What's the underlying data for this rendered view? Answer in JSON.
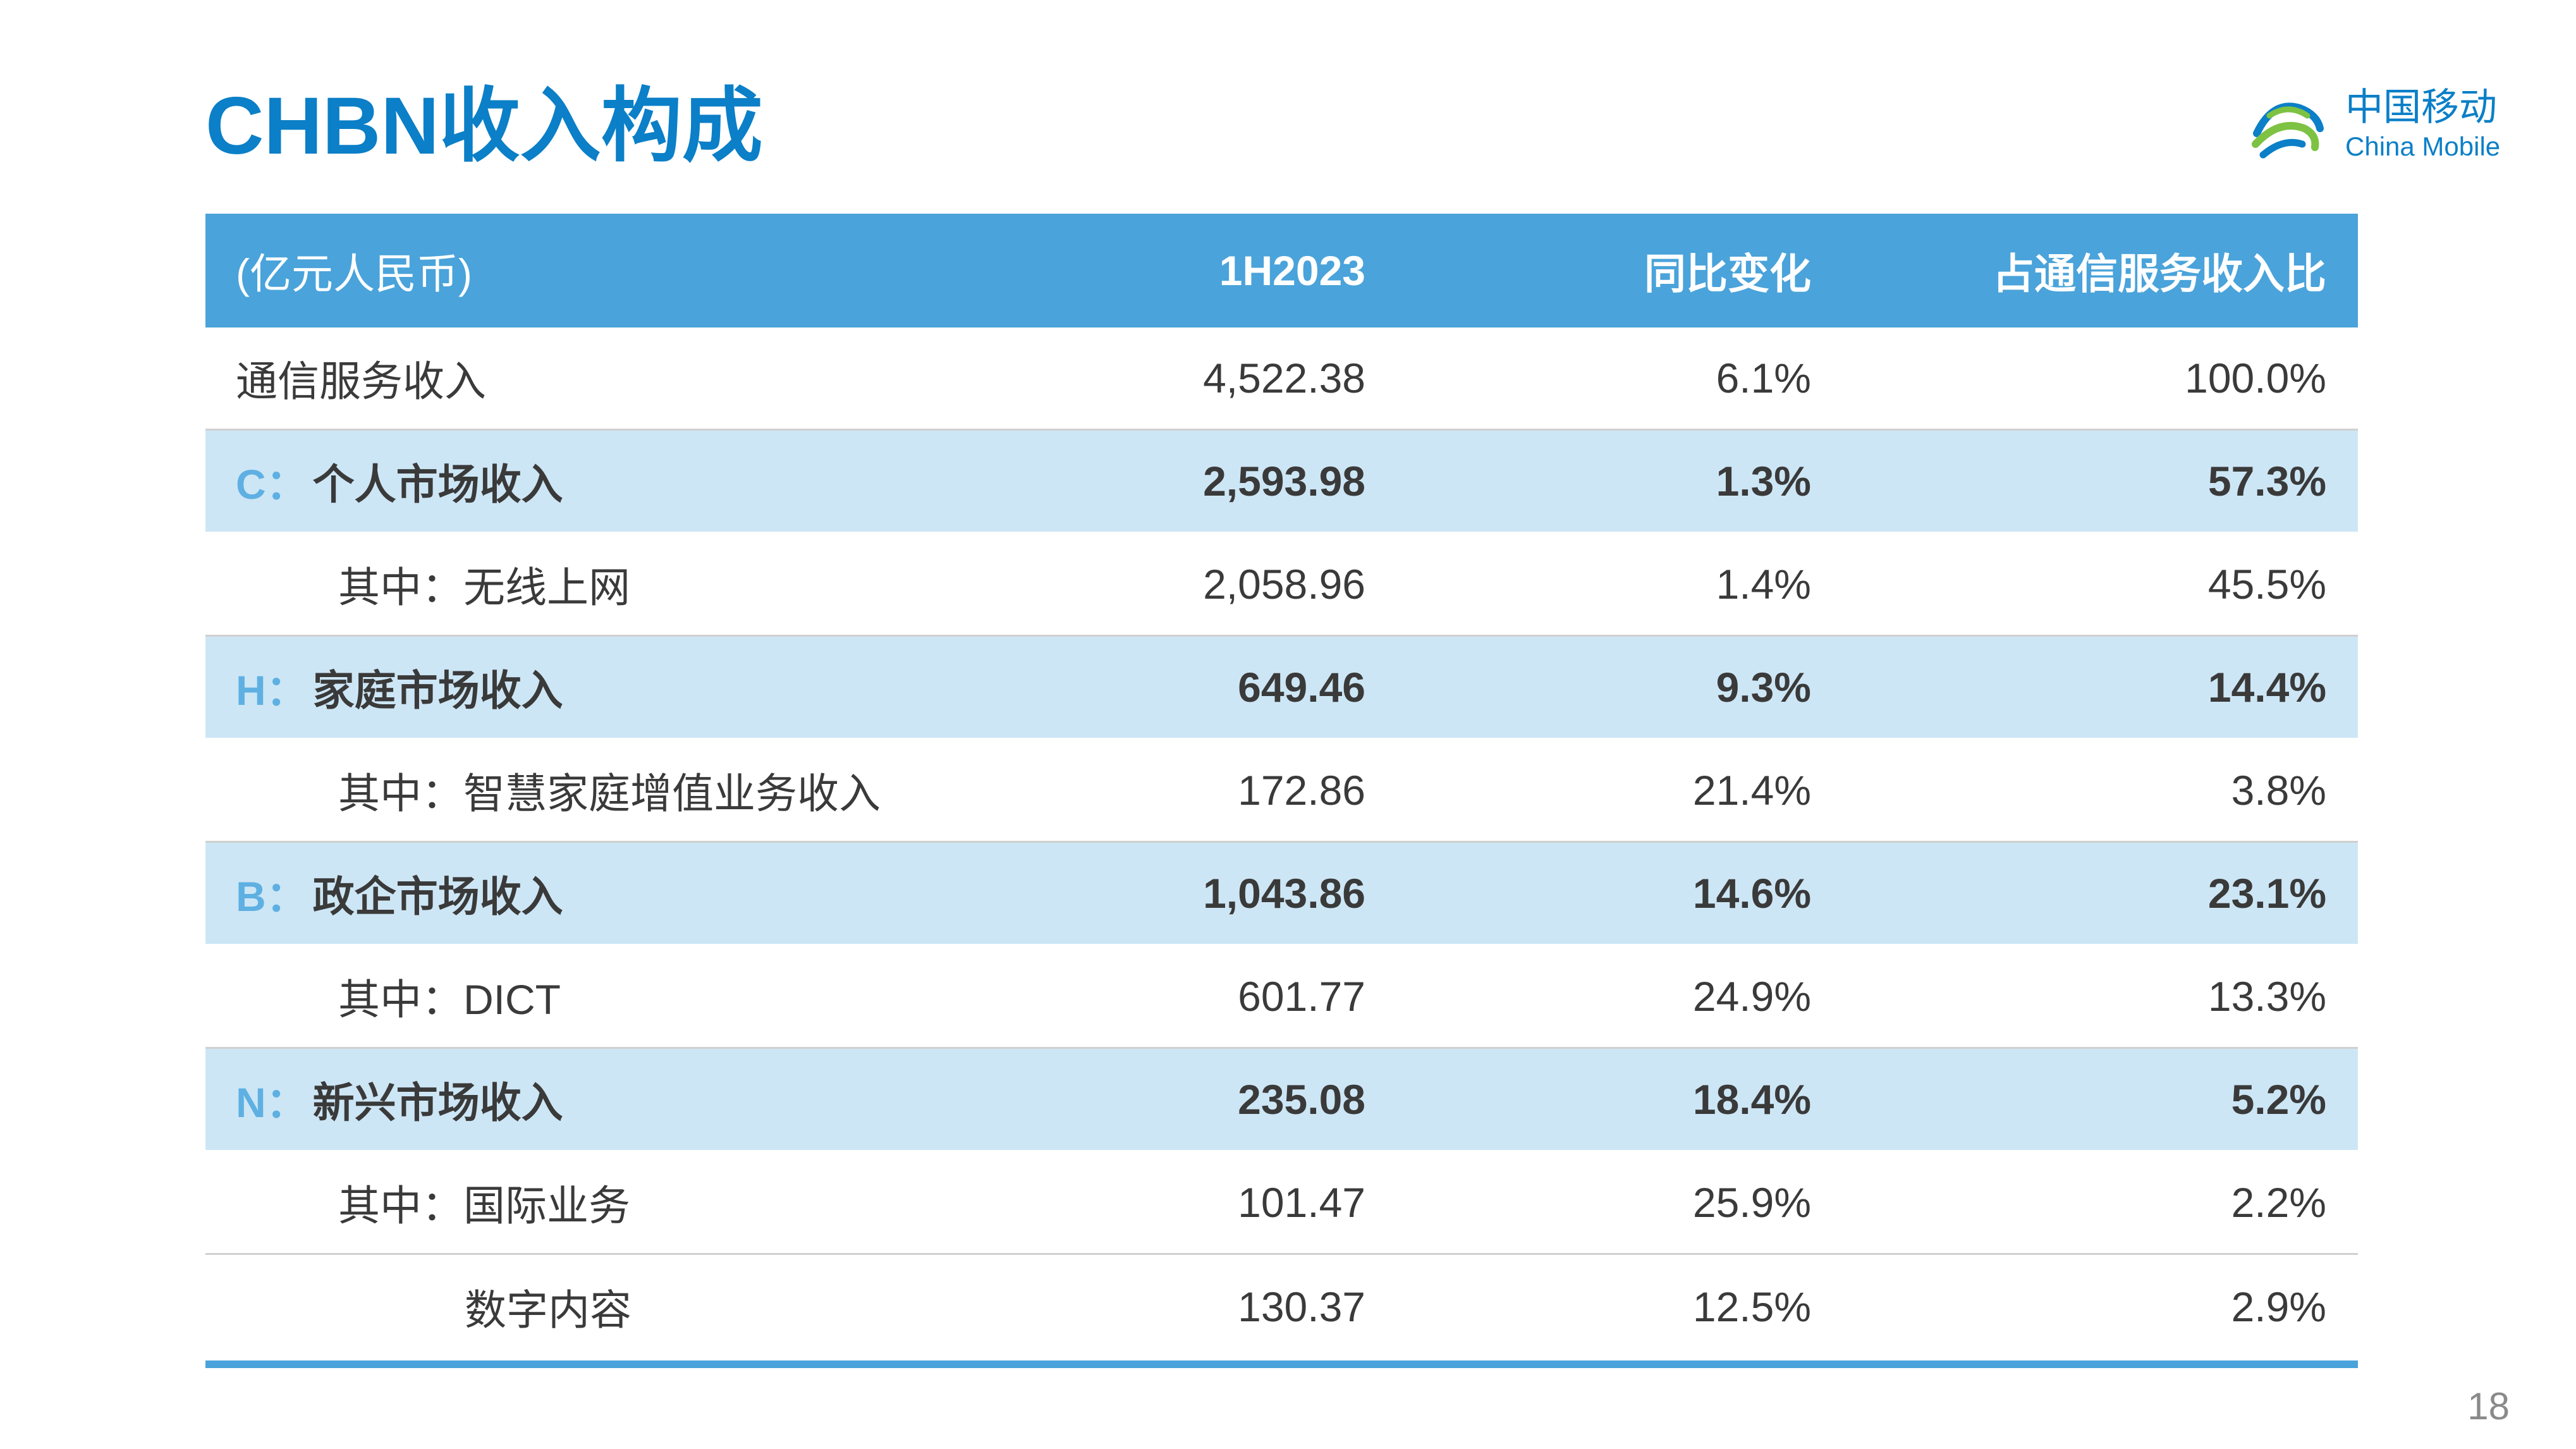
{
  "title": "CHBN收入构成",
  "logo": {
    "cn": "中国移动",
    "en": "China Mobile"
  },
  "table": {
    "headers": [
      "(亿元人民币)",
      "1H2023",
      "同比变化",
      "占通信服务收入比"
    ],
    "rows": [
      {
        "type": "sub",
        "indent": 0,
        "prefix": "",
        "label": "通信服务收入",
        "value": "4,522.38",
        "yoy": "6.1%",
        "share": "100.0%"
      },
      {
        "type": "cat",
        "indent": 0,
        "prefix": "C：",
        "label": "个人市场收入",
        "value": "2,593.98",
        "yoy": "1.3%",
        "share": "57.3%"
      },
      {
        "type": "sub",
        "indent": 1,
        "prefix": "",
        "label": "其中：无线上网",
        "value": "2,058.96",
        "yoy": "1.4%",
        "share": "45.5%"
      },
      {
        "type": "cat",
        "indent": 0,
        "prefix": "H：",
        "label": "家庭市场收入",
        "value": "649.46",
        "yoy": "9.3%",
        "share": "14.4%"
      },
      {
        "type": "sub",
        "indent": 1,
        "prefix": "",
        "label": "其中：智慧家庭增值业务收入",
        "value": "172.86",
        "yoy": "21.4%",
        "share": "3.8%"
      },
      {
        "type": "cat",
        "indent": 0,
        "prefix": "B：",
        "label": "政企市场收入",
        "value": "1,043.86",
        "yoy": "14.6%",
        "share": "23.1%"
      },
      {
        "type": "sub",
        "indent": 1,
        "prefix": "",
        "label": "其中：DICT",
        "value": "601.77",
        "yoy": "24.9%",
        "share": "13.3%"
      },
      {
        "type": "cat",
        "indent": 0,
        "prefix": "N：",
        "label": "新兴市场收入",
        "value": "235.08",
        "yoy": "18.4%",
        "share": "5.2%"
      },
      {
        "type": "sub",
        "indent": 1,
        "prefix": "",
        "label": "其中：国际业务",
        "value": "101.47",
        "yoy": "25.9%",
        "share": "2.2%"
      },
      {
        "type": "sub",
        "indent": 2,
        "prefix": "",
        "label": "数字内容",
        "value": "130.37",
        "yoy": "12.5%",
        "share": "2.9%"
      }
    ]
  },
  "page_number": "18",
  "colors": {
    "title": "#0b7fc7",
    "header_bg": "#4aa3da",
    "category_bg": "#cde6f5",
    "prefix": "#5fb0e2"
  }
}
